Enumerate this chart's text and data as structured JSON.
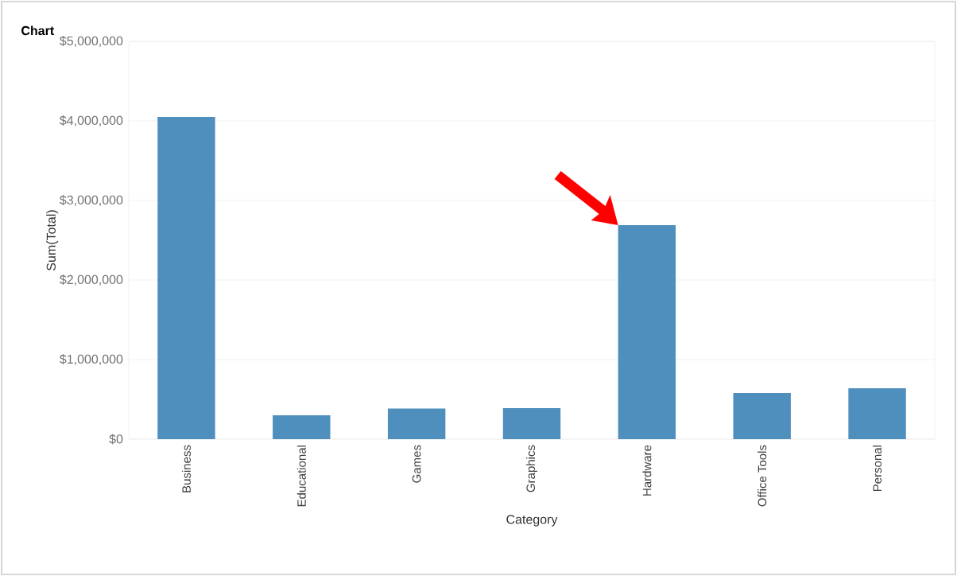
{
  "chart_data": {
    "type": "bar",
    "title": "Chart",
    "xlabel": "Category",
    "ylabel": "Sum(Total)",
    "categories": [
      "Business",
      "Educational",
      "Games",
      "Graphics",
      "Hardware",
      "Office Tools",
      "Personal"
    ],
    "values": [
      4050000,
      300000,
      385000,
      390000,
      2690000,
      580000,
      640000
    ],
    "color": "#4f8fbe",
    "ylim": [
      0,
      5000000
    ],
    "yticks": [
      {
        "value": 0,
        "label": "$0"
      },
      {
        "value": 1000000,
        "label": "$1,000,000"
      },
      {
        "value": 2000000,
        "label": "$2,000,000"
      },
      {
        "value": 3000000,
        "label": "$3,000,000"
      },
      {
        "value": 4000000,
        "label": "$4,000,000"
      },
      {
        "value": 5000000,
        "label": "$5,000,000"
      }
    ],
    "grid": "y"
  }
}
